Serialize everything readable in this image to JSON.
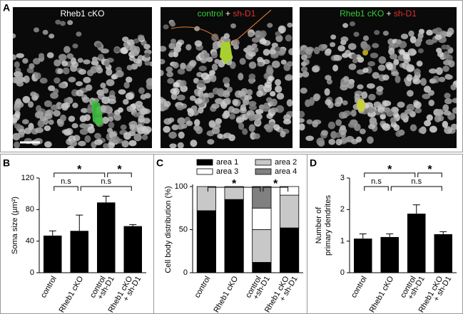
{
  "figure": {
    "panel_a": {
      "label": "A",
      "images": [
        {
          "caption": [
            {
              "text": "Rheb1 cKO",
              "color": "#ffffff"
            }
          ]
        },
        {
          "caption": [
            {
              "text": "control",
              "color": "#33cc33"
            },
            {
              "text": " + ",
              "color": "#ffffff"
            },
            {
              "text": "sh-D1",
              "color": "#e03030"
            }
          ]
        },
        {
          "caption": [
            {
              "text": "Rheb1 cKO",
              "color": "#33cc33"
            },
            {
              "text": " + ",
              "color": "#ffffff"
            },
            {
              "text": "sh-D1",
              "color": "#e03030"
            }
          ]
        }
      ]
    }
  },
  "chart_data": [
    {
      "label": "B",
      "type": "bar",
      "ylabel": [
        "Soma size (µm²)"
      ],
      "categories": [
        [
          "control"
        ],
        [
          "Rheb1 cKO"
        ],
        [
          "control",
          "+sh-D1"
        ],
        [
          "Rheb1 cKO",
          "+ sh-D1"
        ]
      ],
      "values": [
        47,
        53,
        89,
        59
      ],
      "errors": [
        6,
        20,
        8,
        2
      ],
      "color": "#000000",
      "ylim": [
        0,
        120
      ],
      "yticks": [
        0,
        40,
        80,
        120
      ],
      "rows": [
        [
          {
            "text": "*",
            "from": 0,
            "to": 2
          },
          {
            "text": "*",
            "from": 2,
            "to": 3
          }
        ],
        [
          {
            "text": "n.s",
            "from": 0,
            "to": 1
          },
          {
            "text": "n.s",
            "from": 1,
            "to": 3
          }
        ]
      ]
    },
    {
      "label": "C",
      "type": "stacked_bar",
      "ylabel": [
        "Cell body distribution (%)"
      ],
      "categories": [
        [
          "control"
        ],
        [
          "Rheb1 cKO"
        ],
        [
          "control",
          "+sh-D1"
        ],
        [
          "Rheb1 cKO",
          "+ sh-D1"
        ]
      ],
      "series": [
        {
          "name": "area 1",
          "color": "#000000",
          "values": [
            72,
            85,
            12,
            52
          ]
        },
        {
          "name": "area 2",
          "color": "#c8c8c8",
          "values": [
            28,
            15,
            38,
            38
          ]
        },
        {
          "name": "area 3",
          "color": "#ffffff",
          "values": [
            0,
            0,
            25,
            10
          ]
        },
        {
          "name": "area 4",
          "color": "#808080",
          "values": [
            0,
            0,
            25,
            0
          ]
        }
      ],
      "ylim": [
        0,
        100
      ],
      "yticks": [
        0,
        50,
        100
      ],
      "rows": [
        [
          {
            "text": "*",
            "from": 0,
            "to": 2
          },
          {
            "text": "*",
            "from": 2,
            "to": 3
          }
        ]
      ]
    },
    {
      "label": "D",
      "type": "bar",
      "ylabel": [
        "Number of",
        "primary dendrites"
      ],
      "categories": [
        [
          "control"
        ],
        [
          "Rheb1 cKO"
        ],
        [
          "control",
          "+sh-D1"
        ],
        [
          "Rheb1 cKO",
          "+ sh-D1"
        ]
      ],
      "values": [
        1.08,
        1.13,
        1.87,
        1.22
      ],
      "errors": [
        0.15,
        0.1,
        0.28,
        0.08
      ],
      "color": "#000000",
      "ylim": [
        0,
        3
      ],
      "yticks": [
        0,
        1,
        2,
        3
      ],
      "rows": [
        [
          {
            "text": "*",
            "from": 0,
            "to": 2
          },
          {
            "text": "*",
            "from": 2,
            "to": 3
          }
        ],
        [
          {
            "text": "n.s",
            "from": 0,
            "to": 1
          },
          {
            "text": "n.s",
            "from": 1,
            "to": 3
          }
        ]
      ]
    }
  ]
}
